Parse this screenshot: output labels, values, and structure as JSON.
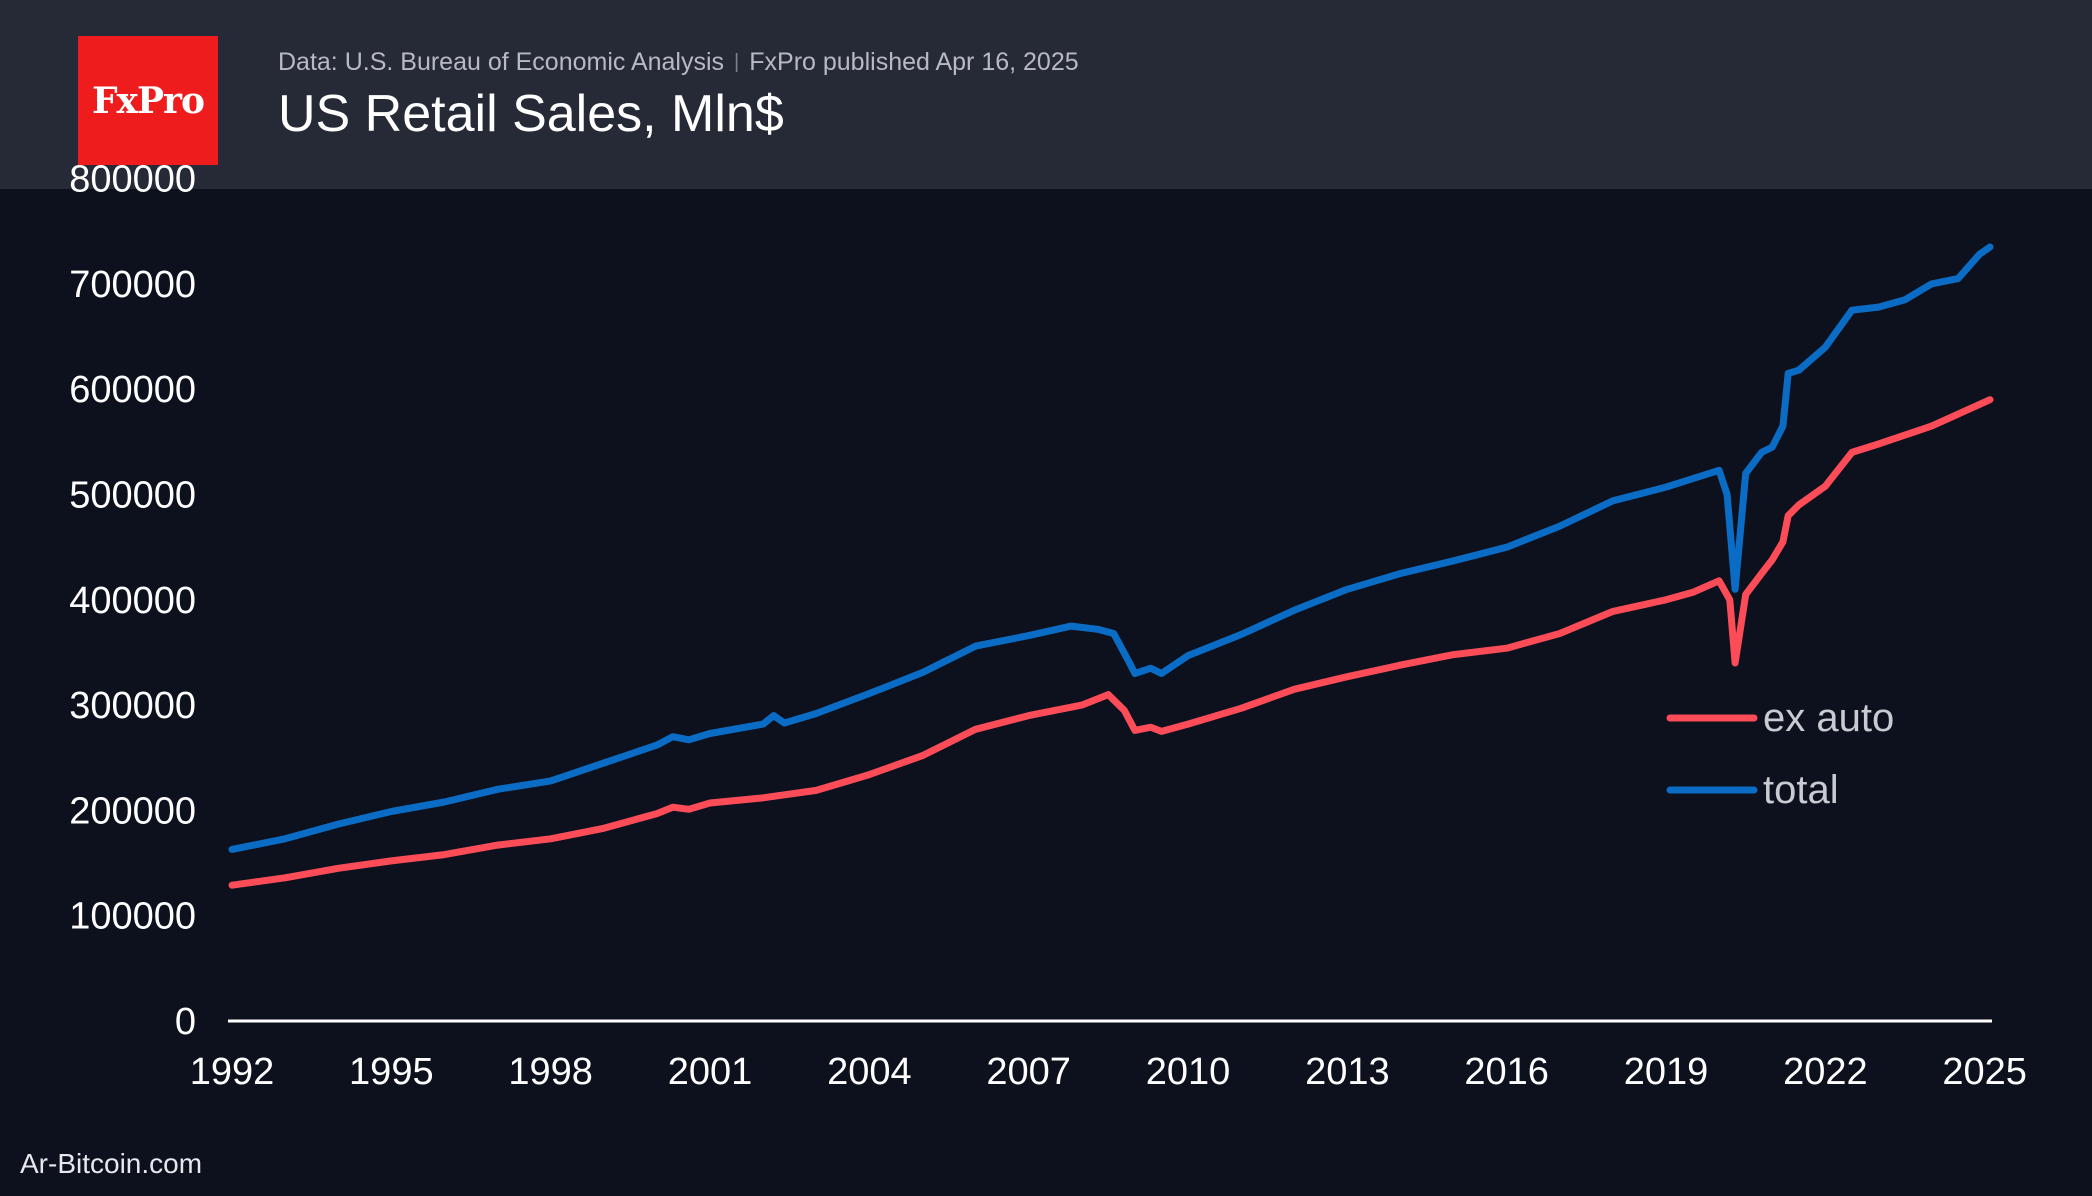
{
  "header": {
    "logo_text": "FxPro",
    "source_text": "Data: U.S. Bureau of Economic Analysis",
    "separator": "|",
    "published_text": "FxPro published Apr 16, 2025",
    "title": "US Retail Sales, Mln$"
  },
  "footer": {
    "watermark": "Ar-Bitcoin.com"
  },
  "colors": {
    "background": "#0c111d",
    "header": "#262a36",
    "ex_auto": "#fc4c58",
    "total": "#0b6cc6",
    "axis": "#ffffff"
  },
  "chart_data": {
    "type": "line",
    "title": "US Retail Sales, Mln$",
    "xlabel": "",
    "ylabel": "",
    "xlim": [
      1992,
      2025.1
    ],
    "ylim": [
      0,
      800000
    ],
    "x_ticks": [
      1992,
      1995,
      1998,
      2001,
      2004,
      2007,
      2010,
      2013,
      2016,
      2019,
      2022,
      2025
    ],
    "y_ticks": [
      0,
      100000,
      200000,
      300000,
      400000,
      500000,
      600000,
      700000,
      800000
    ],
    "legend_position": "right",
    "series": [
      {
        "name": "ex auto",
        "color": "#fc4c58",
        "points": [
          [
            1992.0,
            129000
          ],
          [
            1993.0,
            136000
          ],
          [
            1994.0,
            145000
          ],
          [
            1995.0,
            152000
          ],
          [
            1996.0,
            158000
          ],
          [
            1997.0,
            167000
          ],
          [
            1998.0,
            173000
          ],
          [
            1999.0,
            183000
          ],
          [
            2000.0,
            197000
          ],
          [
            2000.3,
            203000
          ],
          [
            2000.6,
            201000
          ],
          [
            2001.0,
            207000
          ],
          [
            2002.0,
            212000
          ],
          [
            2003.0,
            219000
          ],
          [
            2004.0,
            234000
          ],
          [
            2005.0,
            252000
          ],
          [
            2006.0,
            277000
          ],
          [
            2007.0,
            290000
          ],
          [
            2008.0,
            300000
          ],
          [
            2008.5,
            310000
          ],
          [
            2008.8,
            295000
          ],
          [
            2009.0,
            276000
          ],
          [
            2009.3,
            279000
          ],
          [
            2009.5,
            275000
          ],
          [
            2010.0,
            282000
          ],
          [
            2011.0,
            297000
          ],
          [
            2012.0,
            315000
          ],
          [
            2013.0,
            327000
          ],
          [
            2014.0,
            338000
          ],
          [
            2015.0,
            348000
          ],
          [
            2016.0,
            354000
          ],
          [
            2017.0,
            368000
          ],
          [
            2018.0,
            389000
          ],
          [
            2019.0,
            400000
          ],
          [
            2019.5,
            407000
          ],
          [
            2020.0,
            418000
          ],
          [
            2020.2,
            400000
          ],
          [
            2020.3,
            340000
          ],
          [
            2020.5,
            405000
          ],
          [
            2020.8,
            425000
          ],
          [
            2021.0,
            438000
          ],
          [
            2021.2,
            455000
          ],
          [
            2021.3,
            480000
          ],
          [
            2021.5,
            490000
          ],
          [
            2022.0,
            508000
          ],
          [
            2022.5,
            540000
          ],
          [
            2023.0,
            548000
          ],
          [
            2024.0,
            565000
          ],
          [
            2025.1,
            590000
          ]
        ]
      },
      {
        "name": "total",
        "color": "#0b6cc6",
        "points": [
          [
            1992.0,
            163000
          ],
          [
            1993.0,
            173000
          ],
          [
            1994.0,
            187000
          ],
          [
            1995.0,
            199000
          ],
          [
            1996.0,
            208000
          ],
          [
            1997.0,
            220000
          ],
          [
            1998.0,
            228000
          ],
          [
            1999.0,
            245000
          ],
          [
            2000.0,
            262000
          ],
          [
            2000.3,
            270000
          ],
          [
            2000.6,
            267000
          ],
          [
            2001.0,
            273000
          ],
          [
            2002.0,
            282000
          ],
          [
            2002.2,
            290000
          ],
          [
            2002.4,
            283000
          ],
          [
            2003.0,
            292000
          ],
          [
            2004.0,
            311000
          ],
          [
            2005.0,
            331000
          ],
          [
            2006.0,
            356000
          ],
          [
            2007.0,
            366000
          ],
          [
            2007.8,
            375000
          ],
          [
            2008.3,
            372000
          ],
          [
            2008.6,
            368000
          ],
          [
            2008.9,
            340000
          ],
          [
            2009.0,
            330000
          ],
          [
            2009.3,
            335000
          ],
          [
            2009.5,
            330000
          ],
          [
            2010.0,
            347000
          ],
          [
            2011.0,
            367000
          ],
          [
            2012.0,
            390000
          ],
          [
            2013.0,
            410000
          ],
          [
            2014.0,
            425000
          ],
          [
            2015.0,
            437000
          ],
          [
            2016.0,
            450000
          ],
          [
            2017.0,
            470000
          ],
          [
            2018.0,
            494000
          ],
          [
            2019.0,
            507000
          ],
          [
            2019.5,
            515000
          ],
          [
            2020.0,
            523000
          ],
          [
            2020.15,
            500000
          ],
          [
            2020.3,
            410000
          ],
          [
            2020.5,
            520000
          ],
          [
            2020.8,
            540000
          ],
          [
            2021.0,
            545000
          ],
          [
            2021.2,
            565000
          ],
          [
            2021.3,
            615000
          ],
          [
            2021.5,
            618000
          ],
          [
            2022.0,
            640000
          ],
          [
            2022.5,
            675000
          ],
          [
            2023.0,
            678000
          ],
          [
            2023.5,
            685000
          ],
          [
            2024.0,
            700000
          ],
          [
            2024.5,
            705000
          ],
          [
            2024.9,
            728000
          ],
          [
            2025.1,
            735000
          ]
        ]
      }
    ]
  }
}
